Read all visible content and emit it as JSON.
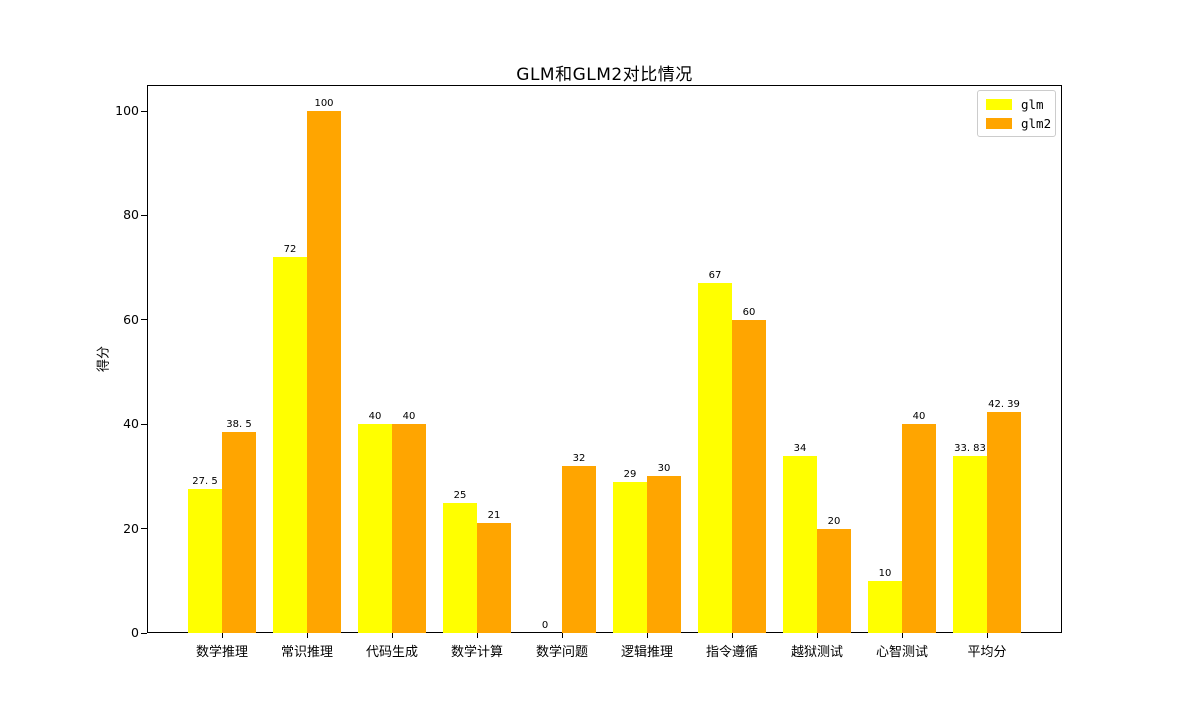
{
  "figure": {
    "background": "#ffffff",
    "frame_color": "#000000"
  },
  "chart_data": {
    "type": "bar",
    "title": "GLM和GLM2对比情况",
    "xlabel": "",
    "ylabel": "得分",
    "categories": [
      "数学推理",
      "常识推理",
      "代码生成",
      "数学计算",
      "数学问题",
      "逻辑推理",
      "指令遵循",
      "越狱测试",
      "心智测试",
      "平均分"
    ],
    "series": [
      {
        "name": "glm",
        "color": "#ffff00",
        "values": [
          27.5,
          72,
          40,
          25,
          0,
          29,
          67,
          34,
          10,
          33.83
        ],
        "labels": [
          "27. 5",
          "72",
          "40",
          "25",
          "0",
          "29",
          "67",
          "34",
          "10",
          "33. 83"
        ]
      },
      {
        "name": "glm2",
        "color": "#ffa500",
        "values": [
          38.5,
          100,
          40,
          21,
          32,
          30,
          60,
          20,
          40,
          42.39
        ],
        "labels": [
          "38. 5",
          "100",
          "40",
          "21",
          "32",
          "30",
          "60",
          "20",
          "40",
          "42. 39"
        ]
      }
    ],
    "yticks": [
      0,
      20,
      40,
      60,
      80,
      100
    ],
    "ylim": [
      0,
      105
    ],
    "grid": false,
    "legend_position": "upper right"
  }
}
